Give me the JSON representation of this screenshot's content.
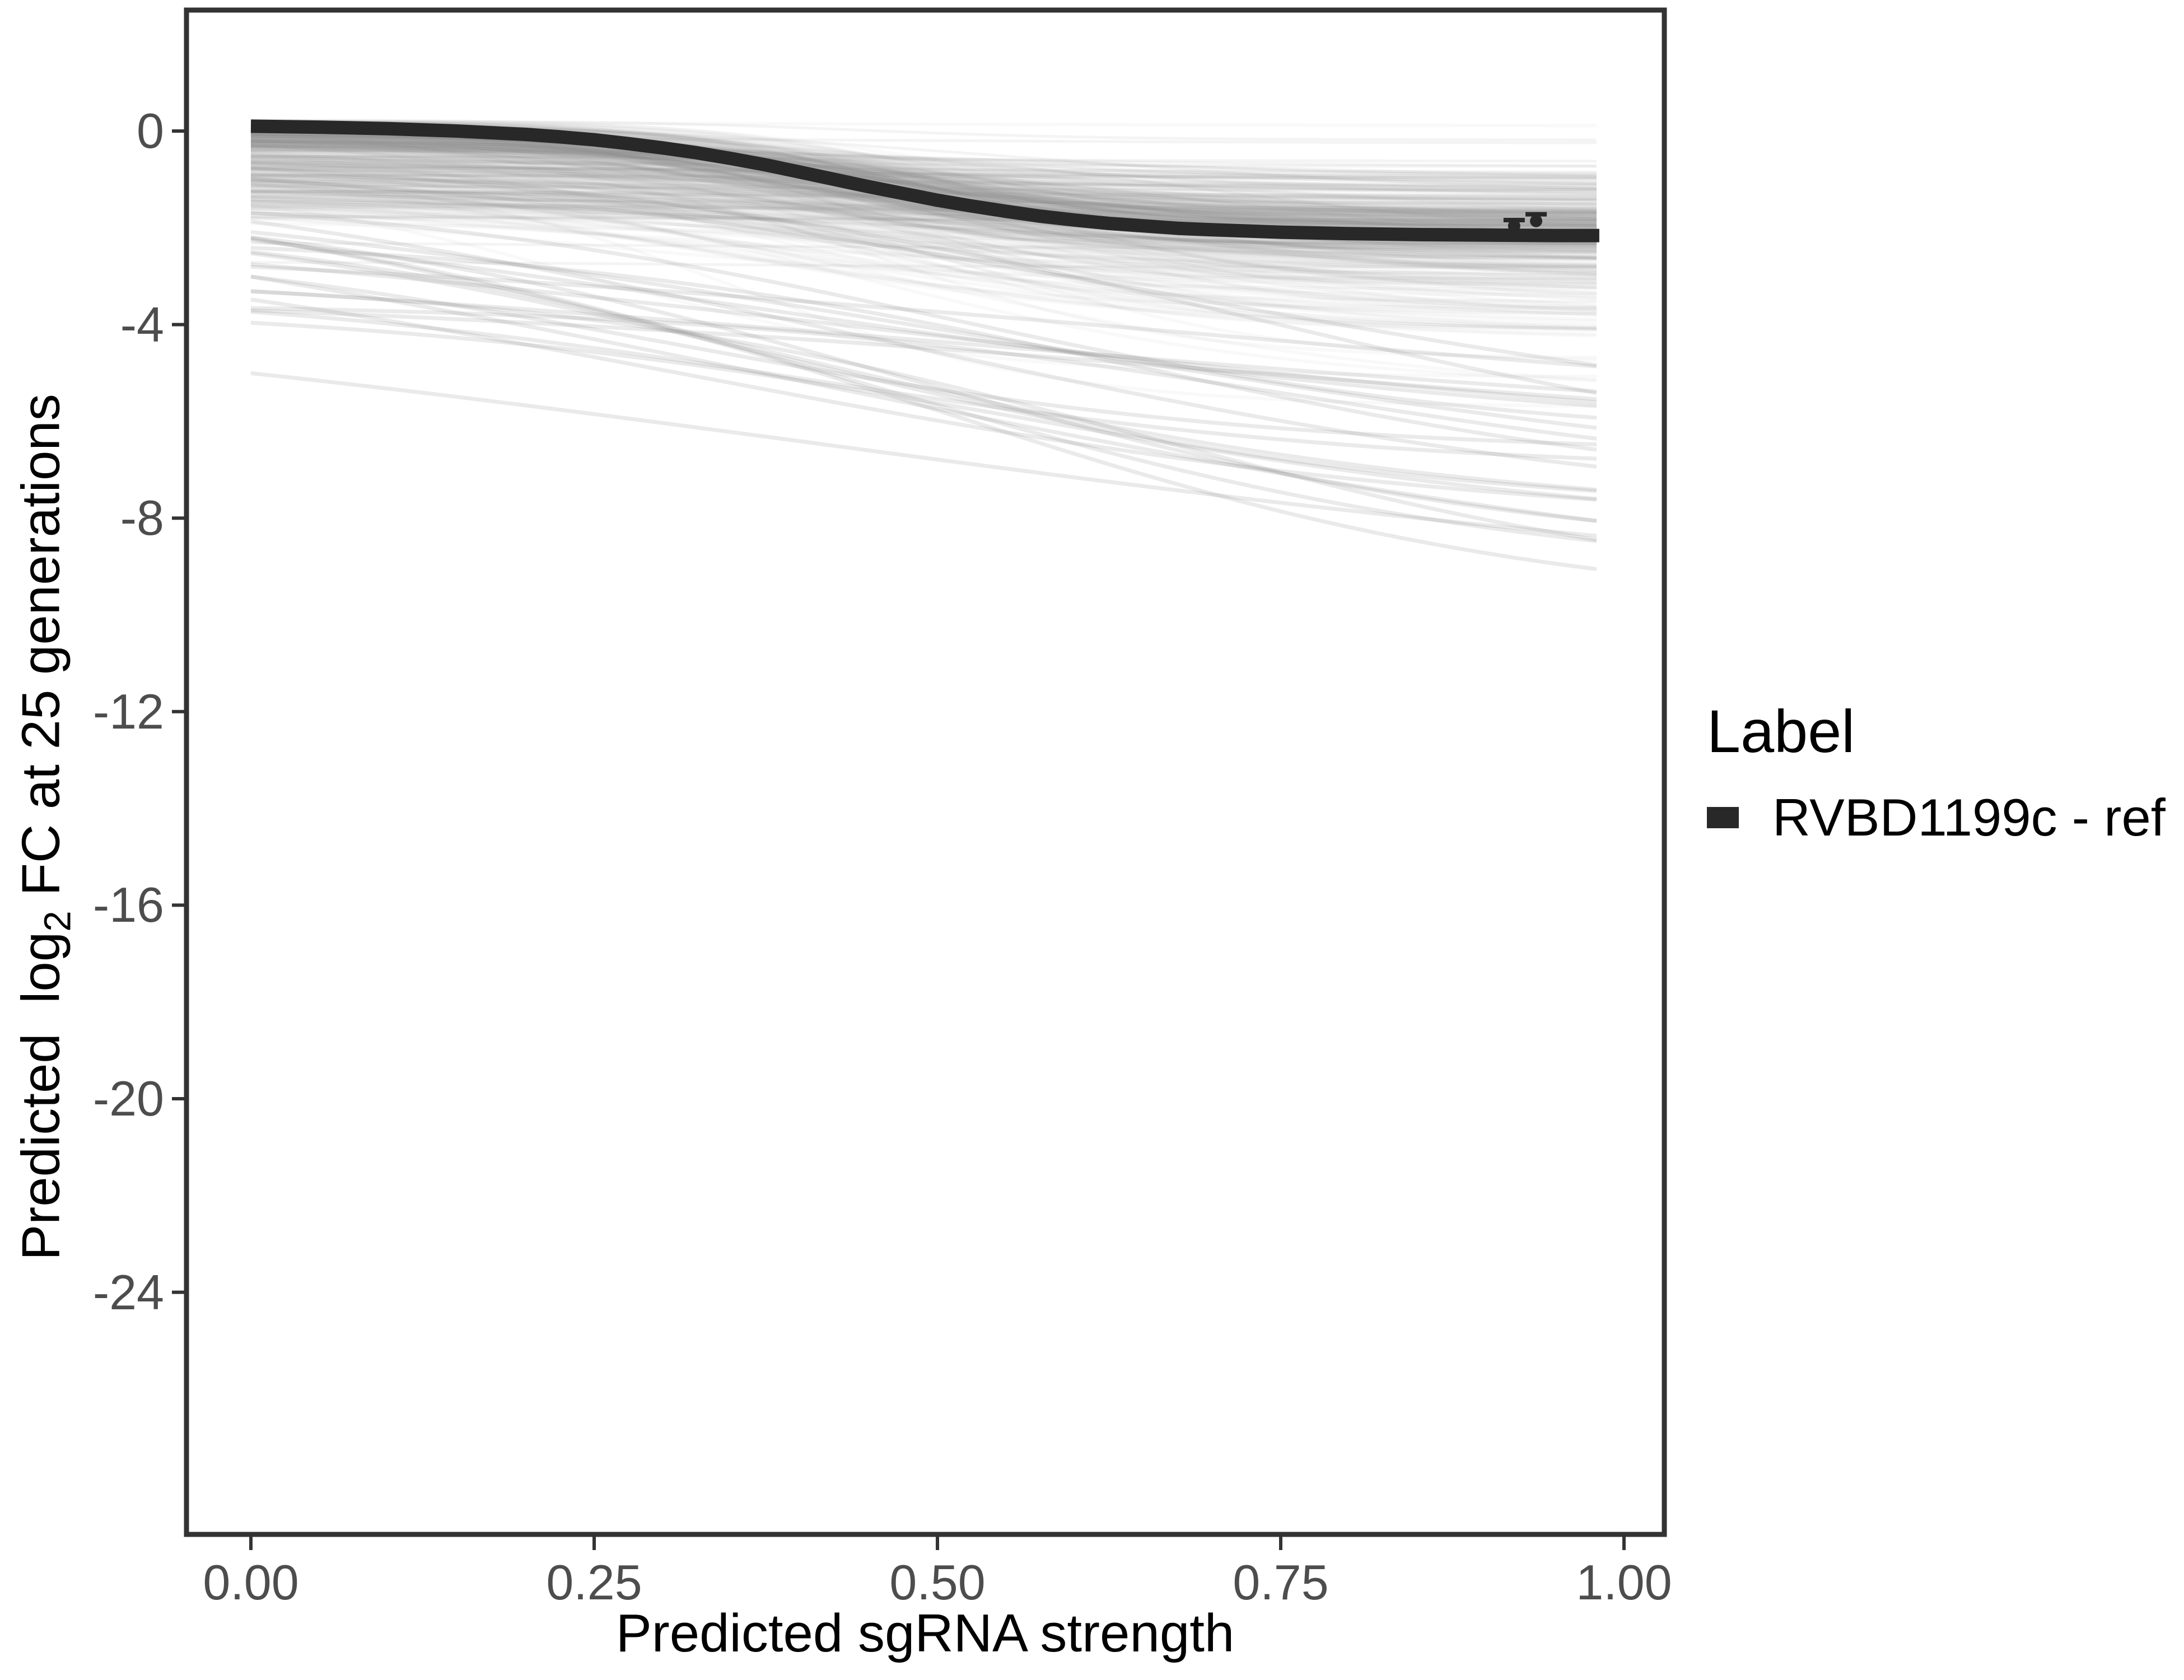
{
  "figure": {
    "background": "#ffffff"
  },
  "axes": {
    "x_title": "Predicted sgRNA strength",
    "y_title_prefix": "Predicted  log",
    "y_title_sub": "2",
    "y_title_suffix": " FC at 25 generations",
    "tick_label_color": "#4d4d4d",
    "axis_color": "#333333"
  },
  "legend": {
    "title": "Label",
    "position": "right",
    "items": [
      {
        "label": "RVBD1199c - ref",
        "color": "#282828"
      }
    ]
  },
  "chart_data": {
    "type": "line",
    "title": "",
    "xlabel": "Predicted sgRNA strength",
    "ylabel": "Predicted log2 FC at 25 generations",
    "xlim": [
      -0.047,
      1.03
    ],
    "ylim": [
      -29,
      2.5
    ],
    "grid": false,
    "legend_position": "right",
    "x_ticks": [
      {
        "value": 0.0,
        "label": "0.00"
      },
      {
        "value": 0.25,
        "label": "0.25"
      },
      {
        "value": 0.5,
        "label": "0.50"
      },
      {
        "value": 0.75,
        "label": "0.75"
      },
      {
        "value": 1.0,
        "label": "1.00"
      }
    ],
    "y_ticks": [
      {
        "value": 0,
        "label": "0"
      },
      {
        "value": -4,
        "label": "-4"
      },
      {
        "value": -8,
        "label": "-8"
      },
      {
        "value": -12,
        "label": "-12"
      },
      {
        "value": -16,
        "label": "-16"
      },
      {
        "value": -20,
        "label": "-20"
      },
      {
        "value": -24,
        "label": "-24"
      }
    ],
    "series": [
      {
        "name": "RVBD1199c - ref",
        "color": "#282828",
        "width": 24,
        "x": [
          0,
          0.05,
          0.1,
          0.15,
          0.2,
          0.225,
          0.25,
          0.275,
          0.3,
          0.325,
          0.35,
          0.375,
          0.4,
          0.425,
          0.45,
          0.475,
          0.5,
          0.525,
          0.55,
          0.575,
          0.6,
          0.625,
          0.65,
          0.675,
          0.7,
          0.75,
          0.8,
          0.85,
          0.9,
          0.95,
          0.982
        ],
        "y": [
          0.1,
          0.08,
          0.05,
          0.0,
          -0.07,
          -0.12,
          -0.18,
          -0.26,
          -0.35,
          -0.45,
          -0.57,
          -0.7,
          -0.85,
          -1.0,
          -1.15,
          -1.29,
          -1.43,
          -1.55,
          -1.66,
          -1.76,
          -1.84,
          -1.91,
          -1.96,
          -2.01,
          -2.04,
          -2.09,
          -2.12,
          -2.14,
          -2.15,
          -2.16,
          -2.16
        ]
      }
    ],
    "points": [
      {
        "x": 0.92,
        "y": -1.96,
        "ymax": -1.84
      },
      {
        "x": 0.936,
        "y": -1.86,
        "ymax": -1.72
      }
    ],
    "ensemble": {
      "description": "Hundreds of translucent gray sigmoid prediction curves (posterior draws / other sgRNAs), x from 0 to 0.982",
      "x_end": 0.982,
      "groups": [
        {
          "name": "draws-tight",
          "count": 230,
          "color": "#787878",
          "alpha": 0.035,
          "width": 6,
          "y0": {
            "dist": "normal",
            "mean": -0.05,
            "sd": 0.22
          },
          "asym": {
            "dist": "normal",
            "mean": -2.05,
            "sd": 0.35
          },
          "x0": {
            "dist": "normal",
            "mean": 0.445,
            "sd": 0.035
          },
          "k": {
            "dist": "normal",
            "mean": 10.5,
            "sd": 1.3
          }
        },
        {
          "name": "draws-wide",
          "count": 150,
          "color": "#808080",
          "alpha": 0.05,
          "width": 6,
          "y0": {
            "dist": "normal",
            "mean": -0.8,
            "sd": 0.55
          },
          "asym": {
            "dist": "normal",
            "mean": -2.7,
            "sd": 0.95
          },
          "x0": {
            "dist": "normal",
            "mean": 0.47,
            "sd": 0.12
          },
          "k": {
            "dist": "normal",
            "mean": 7.5,
            "sd": 2.2
          }
        },
        {
          "name": "flat-faint",
          "count": 60,
          "color": "#909090",
          "alpha": 0.1,
          "width": 5,
          "y0": {
            "dist": "normal",
            "mean": -0.65,
            "sd": 0.65
          },
          "asym": {
            "dist": "normal",
            "mean": -1.3,
            "sd": 0.7
          },
          "x0": {
            "dist": "normal",
            "mean": 0.5,
            "sd": 0.1
          },
          "k": {
            "dist": "normal",
            "mean": 6,
            "sd": 2
          }
        },
        {
          "name": "deep-strays",
          "count": 24,
          "color": "#8a8a8a",
          "alpha": 0.18,
          "width": 7,
          "y0": {
            "dist": "uniform",
            "min": -3.6,
            "max": -0.3
          },
          "asym": {
            "dist": "uniform",
            "min": -10.2,
            "max": -4.6
          },
          "x0": {
            "dist": "uniform",
            "min": 0.3,
            "max": 0.78
          },
          "k": {
            "dist": "uniform",
            "min": 2.2,
            "max": 5.0
          }
        }
      ]
    }
  }
}
